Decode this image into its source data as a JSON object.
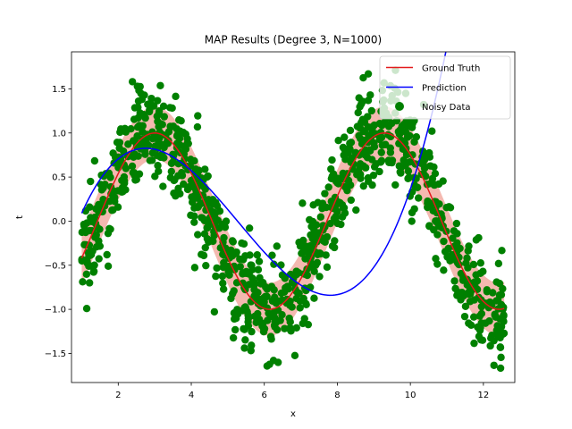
{
  "chart_data": {
    "type": "scatter",
    "title": "MAP Results (Degree 3, N=1000)",
    "xlabel": "x",
    "ylabel": "t",
    "xlim": [
      0.72,
      12.86
    ],
    "ylim": [
      -1.83,
      1.92
    ],
    "x_ticks": [
      2,
      4,
      6,
      8,
      10,
      12
    ],
    "y_ticks": [
      -1.5,
      -1.0,
      -0.5,
      0.0,
      0.5,
      1.0,
      1.5
    ],
    "grid": false,
    "legend_placement": "top-right",
    "x_range": [
      1.0,
      12.57
    ],
    "noise_band_color": "#f4b9b0",
    "series": [
      {
        "name": "Ground Truth",
        "kind": "line",
        "color": "#e31a1c",
        "function": "sin(x - 1.43)"
      },
      {
        "name": "Prediction",
        "kind": "line",
        "color": "#0000ff",
        "coefficients": [
          -1.186,
          1.658,
          -0.4075,
          0.02572
        ]
      },
      {
        "name": "Noisy Data",
        "kind": "scatter",
        "color": "#008000",
        "n_points": 1000,
        "noise_std": 0.3
      }
    ]
  }
}
